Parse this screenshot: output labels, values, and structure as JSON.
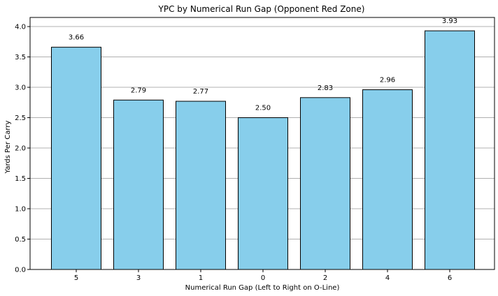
{
  "chart_data": {
    "type": "bar",
    "title": "YPC by Numerical Run Gap (Opponent Red Zone)",
    "xlabel": "Numerical Run Gap (Left to Right on O-Line)",
    "ylabel": "Yards Per Carry",
    "categories": [
      "5",
      "3",
      "1",
      "0",
      "2",
      "4",
      "6"
    ],
    "values": [
      3.66,
      2.79,
      2.77,
      2.5,
      2.83,
      2.96,
      3.93
    ],
    "data_labels": [
      "3.66",
      "2.79",
      "2.77",
      "2.50",
      "2.83",
      "2.96",
      "3.93"
    ],
    "ylim": [
      0,
      4.15
    ],
    "yticks": [
      0.0,
      0.5,
      1.0,
      1.5,
      2.0,
      2.5,
      3.0,
      3.5,
      4.0
    ],
    "ytick_labels": [
      "0.0",
      "0.5",
      "1.0",
      "1.5",
      "2.0",
      "2.5",
      "3.0",
      "3.5",
      "4.0"
    ],
    "grid": "y-major",
    "colors": {
      "bar_fill": "#87ceeb",
      "bar_edge": "#000000",
      "grid": "#b0b0b0"
    }
  }
}
